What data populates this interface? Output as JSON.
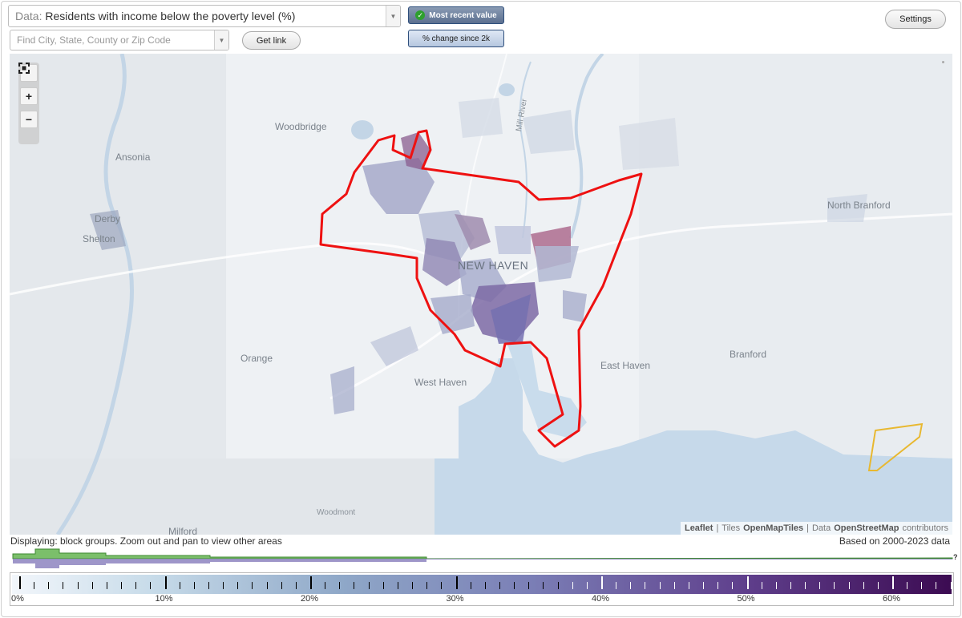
{
  "toolbar": {
    "data_prefix": "Data:",
    "data_value": "Residents with income below the poverty level (%)",
    "search_placeholder": "Find City, State, County or Zip Code",
    "get_link_label": "Get link",
    "mode_recent_label": "Most recent value",
    "mode_change_label": "% change since 2k",
    "settings_label": "Settings"
  },
  "map": {
    "places": {
      "woodbridge": "Woodbridge",
      "ansonia": "Ansonia",
      "derby": "Derby",
      "shelton": "Shelton",
      "north_branford": "North Branford",
      "new_haven": "NEW HAVEN",
      "orange": "Orange",
      "west_haven": "West Haven",
      "east_haven": "East Haven",
      "branford": "Branford",
      "woodmont": "Woodmont",
      "milford": "Milford",
      "mill_river": "Mill River"
    },
    "zoom_in": "+",
    "zoom_out": "−",
    "attribution": {
      "leaflet": "Leaflet",
      "sep1": "|",
      "tiles_prefix": "Tiles",
      "tiles": "OpenMapTiles",
      "sep2": "|",
      "data_prefix": "Data",
      "data": "OpenStreetMap",
      "data_suffix": "contributors"
    },
    "colors": {
      "highlight_outline": "#ee1111",
      "secondary_outline": "#e8b830"
    }
  },
  "status": {
    "displaying": "Displaying: block groups. Zoom out and pan to view other areas",
    "based_on": "Based on 2000-2023 data",
    "unknown_marker": "?"
  },
  "legend": {
    "labels": [
      "0%",
      "10%",
      "20%",
      "30%",
      "40%",
      "50%",
      "60%"
    ],
    "min": 0,
    "max": 65,
    "colors": {
      "low": "#f2f6fb",
      "high": "#3c0b52",
      "hist_green": "#7bbf6a",
      "hist_purple": "#8d84c0"
    }
  }
}
